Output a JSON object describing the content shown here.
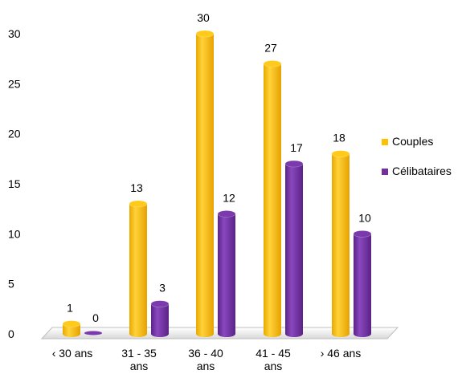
{
  "chart_data": {
    "type": "bar",
    "categories": [
      "‹ 30 ans",
      "31 - 35 ans",
      "36 - 40 ans",
      "41 - 45 ans",
      "› 46 ans"
    ],
    "category_label_lines": [
      [
        "‹ 30 ans"
      ],
      [
        "31 - 35",
        "ans"
      ],
      [
        "36 - 40",
        "ans"
      ],
      [
        "41 - 45",
        "ans"
      ],
      [
        "› 46 ans"
      ]
    ],
    "series": [
      {
        "name": "Couples",
        "values": [
          1,
          13,
          30,
          27,
          18
        ],
        "color": "#FFC000"
      },
      {
        "name": "Célibataires",
        "values": [
          0,
          3,
          12,
          17,
          10
        ],
        "color": "#7030A0"
      }
    ],
    "ylim": [
      0,
      30
    ],
    "yticks": [
      0,
      5,
      10,
      15,
      20,
      25,
      30
    ],
    "grid": false,
    "legend_position": "right",
    "style": "3d-cylinder",
    "title": "",
    "xlabel": "",
    "ylabel": ""
  }
}
